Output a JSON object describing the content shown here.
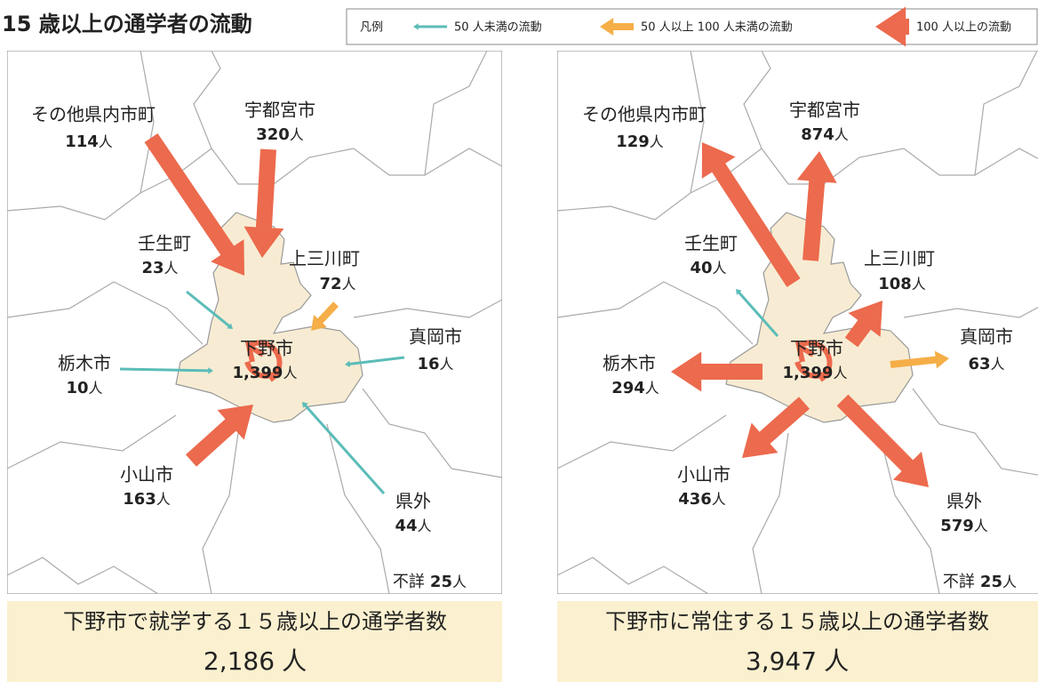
{
  "title": "15 歳以上の通学者の流動",
  "legend": {
    "title": "凡例",
    "items": [
      {
        "label": "50 人未満の流動",
        "color": "#5bbcb8"
      },
      {
        "label": "50 人以上 100 人未満の流動",
        "color": "#f5ae48"
      },
      {
        "label": "100 人以上の流動",
        "color": "#ec6a4d"
      }
    ]
  },
  "unit": "人",
  "maps": [
    {
      "center": {
        "name": "下野市",
        "count": "1,399"
      },
      "places": [
        {
          "name": "その他県内市町",
          "count": 114,
          "color": "#ec6a4d"
        },
        {
          "name": "宇都宮市",
          "count": 320,
          "color": "#ec6a4d"
        },
        {
          "name": "壬生町",
          "count": 23,
          "color": "#5bbcb8"
        },
        {
          "name": "上三川町",
          "count": 72,
          "color": "#f5ae48"
        },
        {
          "name": "真岡市",
          "count": 16,
          "color": "#5bbcb8"
        },
        {
          "name": "栃木市",
          "count": 10,
          "color": "#5bbcb8"
        },
        {
          "name": "小山市",
          "count": 163,
          "color": "#ec6a4d"
        },
        {
          "name": "県外",
          "count": 44,
          "color": "#5bbcb8"
        }
      ],
      "unknown": {
        "name": "不詳",
        "count": 25
      },
      "summary": {
        "caption": "下野市で就学する１５歳以上の通学者数",
        "total": "2,186"
      }
    },
    {
      "center": {
        "name": "下野市",
        "count": "1,399"
      },
      "places": [
        {
          "name": "その他県内市町",
          "count": 129,
          "color": "#ec6a4d"
        },
        {
          "name": "宇都宮市",
          "count": 874,
          "color": "#ec6a4d"
        },
        {
          "name": "壬生町",
          "count": 40,
          "color": "#5bbcb8"
        },
        {
          "name": "上三川町",
          "count": 108,
          "color": "#ec6a4d"
        },
        {
          "name": "真岡市",
          "count": 63,
          "color": "#f5ae48"
        },
        {
          "name": "栃木市",
          "count": 294,
          "color": "#ec6a4d"
        },
        {
          "name": "小山市",
          "count": 436,
          "color": "#ec6a4d"
        },
        {
          "name": "県外",
          "count": 579,
          "color": "#ec6a4d"
        }
      ],
      "unknown": {
        "name": "不詳",
        "count": 25
      },
      "summary": {
        "caption": "下野市に常住する１５歳以上の通学者数",
        "total": "3,947"
      }
    }
  ]
}
